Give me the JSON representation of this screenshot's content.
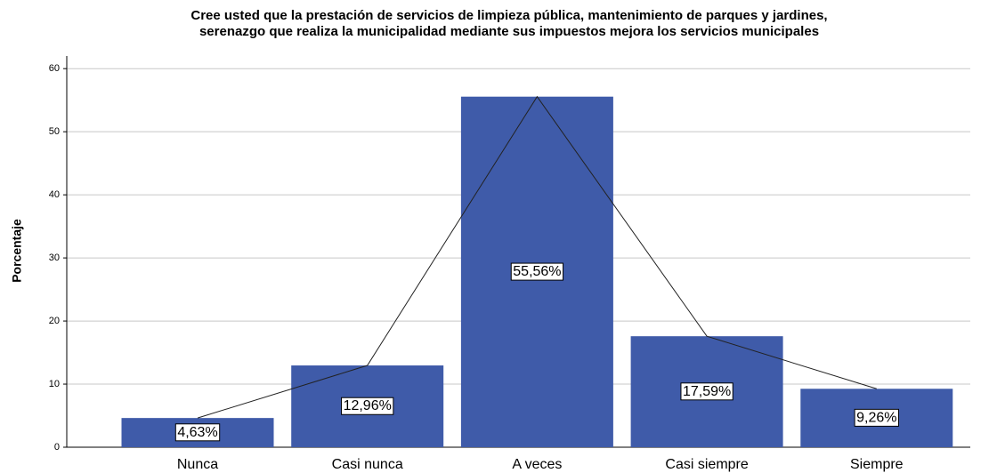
{
  "chart_data": {
    "type": "bar",
    "title": [
      "Cree usted que la prestación de servicios de limpieza pública, mantenimiento de parques y jardines,",
      "serenazgo que realiza la municipalidad mediante sus impuestos mejora los servicios municipales"
    ],
    "y_label": "Porcentaje",
    "categories": [
      "Nunca",
      "Casi nunca",
      "A veces",
      "Casi siempre",
      "Siempre"
    ],
    "values": [
      4.63,
      12.96,
      55.56,
      17.59,
      9.26
    ],
    "value_labels": [
      "4,63%",
      "12,96%",
      "55,56%",
      "17,59%",
      "9,26%"
    ],
    "color": "#3f5ba9",
    "line_color": "#222222",
    "ylim": [
      0,
      62
    ],
    "yticks": [
      0,
      10,
      20,
      30,
      40,
      50,
      60
    ],
    "grid": true
  }
}
